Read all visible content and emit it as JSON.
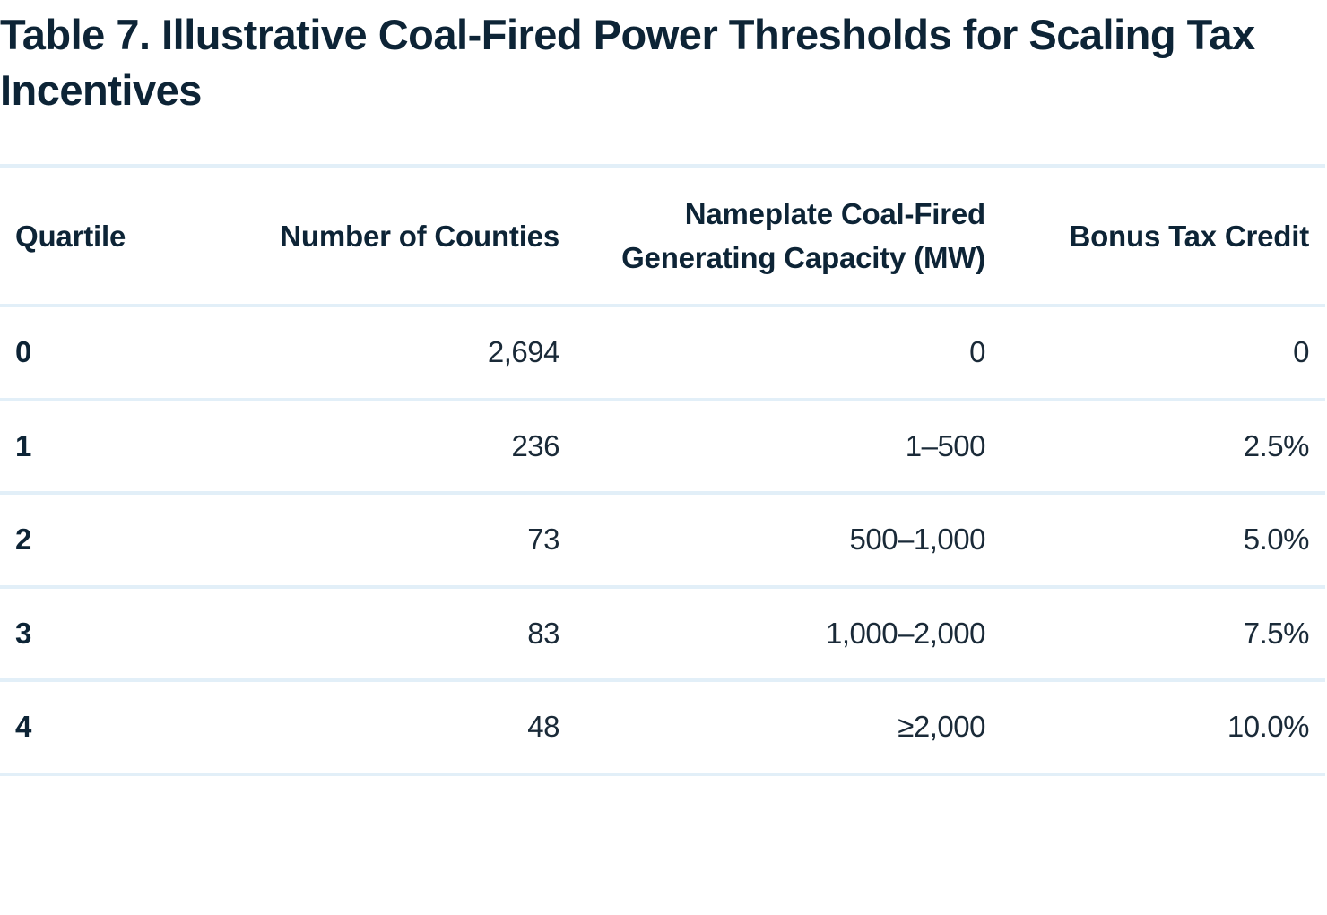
{
  "title": "Table 7.  Illustrative Coal-Fired Power Thresholds for Scaling Tax Incentives",
  "columns": {
    "quartile": "Quartile",
    "counties": "Number of Counties",
    "capacity": "Nameplate Coal-Fired Generating Capacity (MW)",
    "credit": "Bonus Tax Credit"
  },
  "rows": [
    {
      "quartile": "0",
      "counties": "2,694",
      "capacity": "0",
      "credit": "0"
    },
    {
      "quartile": "1",
      "counties": "236",
      "capacity": "1–500",
      "credit": "2.5%"
    },
    {
      "quartile": "2",
      "counties": "73",
      "capacity": "500–1,000",
      "credit": "5.0%"
    },
    {
      "quartile": "3",
      "counties": "83",
      "capacity": "1,000–2,000",
      "credit": "7.5%"
    },
    {
      "quartile": "4",
      "counties": "48",
      "capacity": "≥2,000",
      "credit": "10.0%"
    }
  ],
  "colors": {
    "text": "#0d2436",
    "rule": "#e2eff8"
  }
}
